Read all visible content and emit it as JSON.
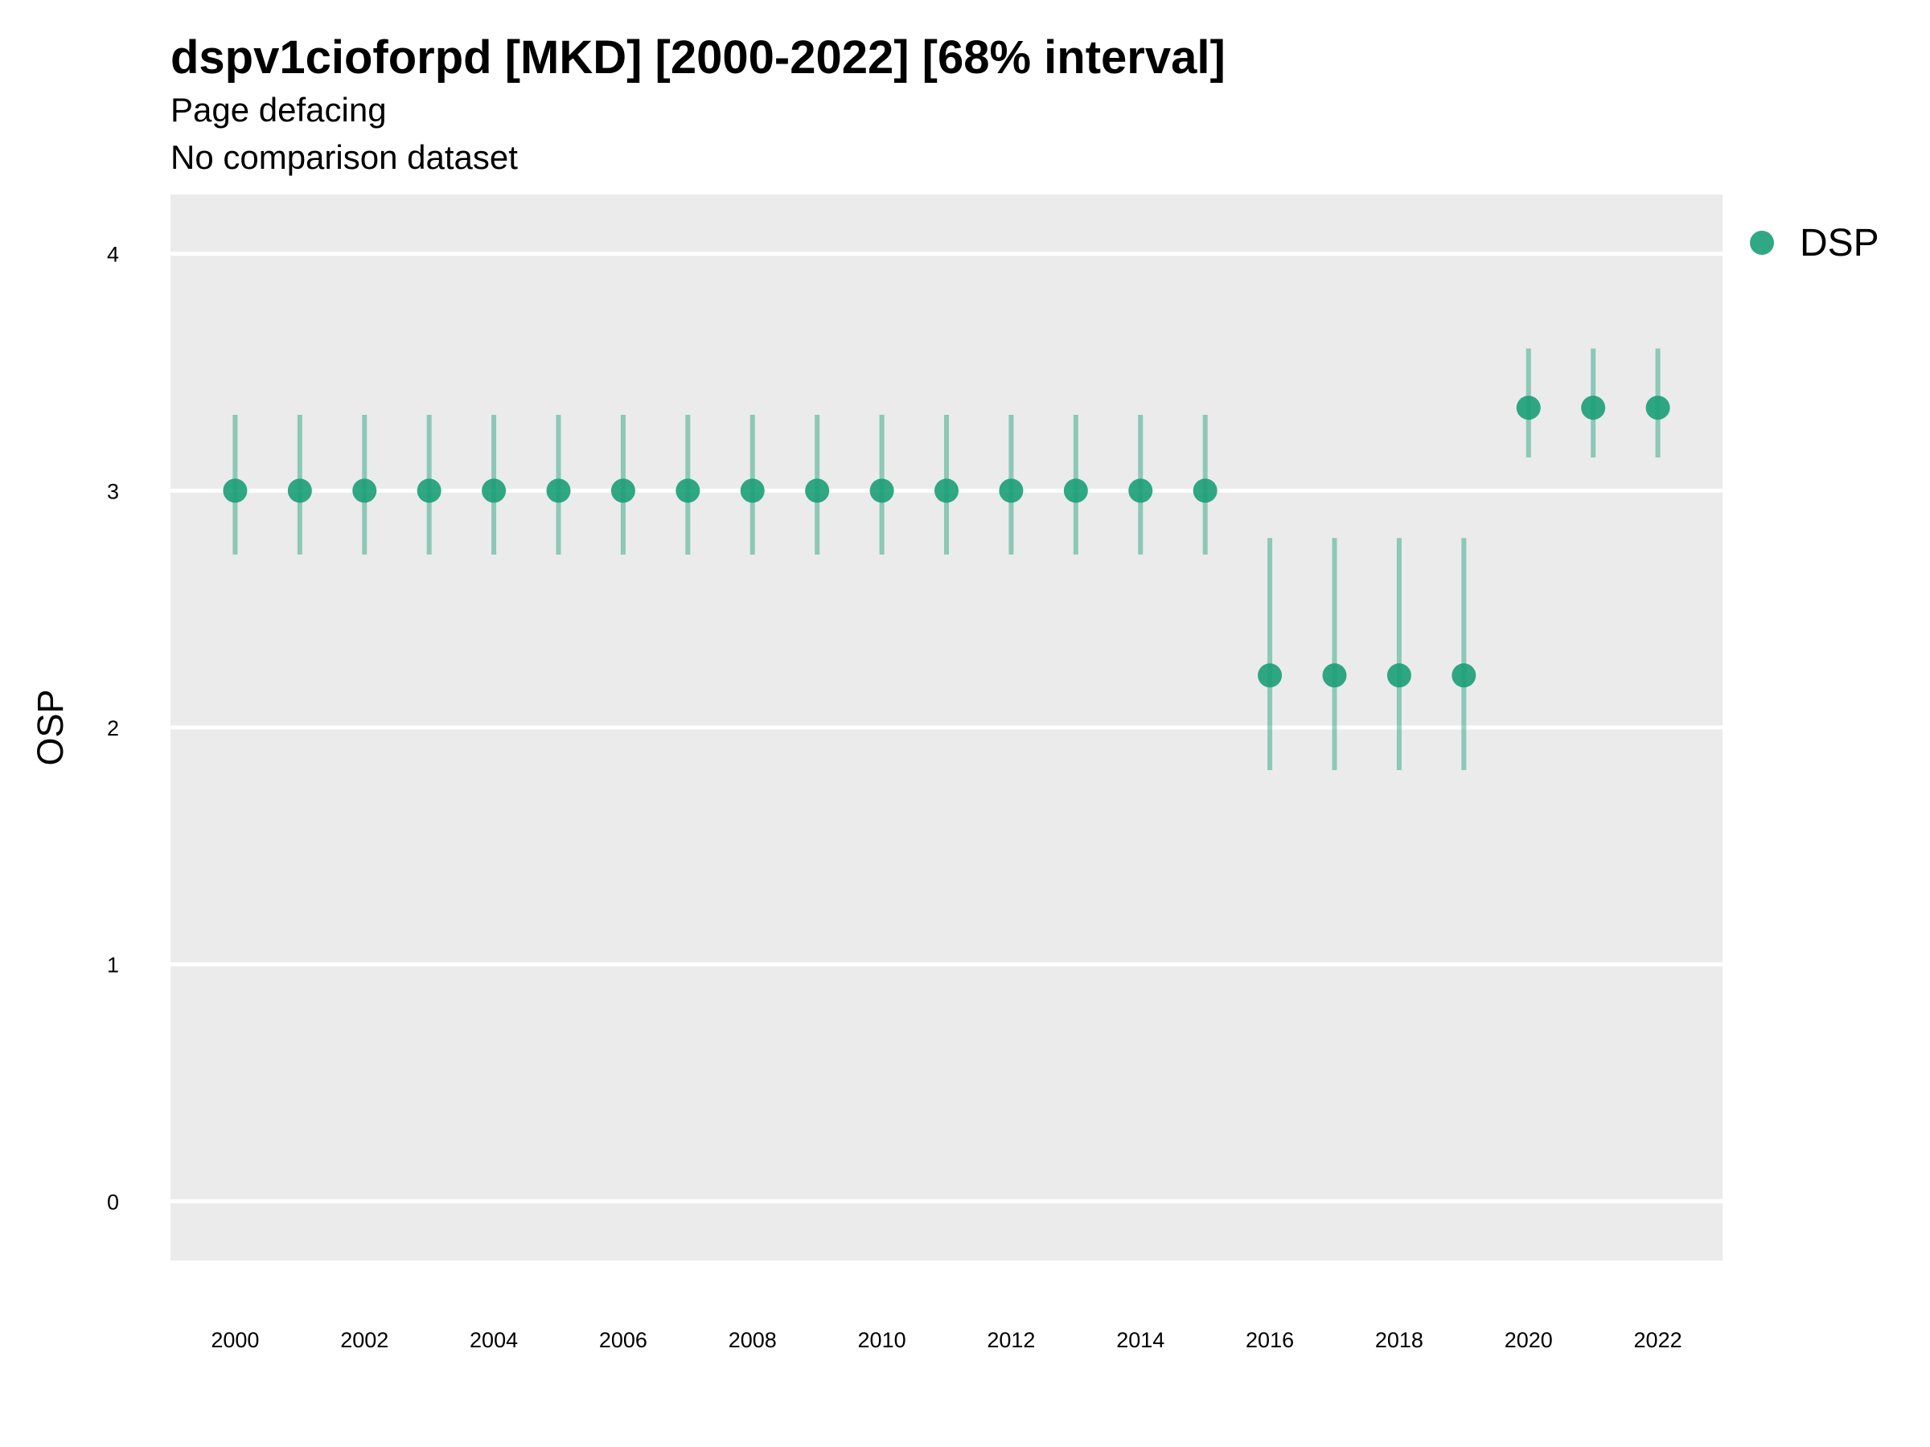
{
  "chart_data": {
    "type": "scatter",
    "title": "dspv1cioforpd [MKD] [2000-2022] [68% interval]",
    "subtitle_lines": [
      "Page defacing",
      "No comparison dataset"
    ],
    "xlabel": "",
    "ylabel": "OSP",
    "x_ticks": [
      "2000",
      "2002",
      "2004",
      "2006",
      "2008",
      "2010",
      "2012",
      "2014",
      "2016",
      "2018",
      "2020",
      "2022"
    ],
    "y_ticks": [
      "0",
      "1",
      "2",
      "3",
      "4"
    ],
    "xlim": [
      1999,
      2023
    ],
    "ylim": [
      -0.25,
      4.25
    ],
    "grid": true,
    "legend_position": "right",
    "series": [
      {
        "name": "DSP",
        "color": "#1b9e77",
        "x": [
          2000,
          2001,
          2002,
          2003,
          2004,
          2005,
          2006,
          2007,
          2008,
          2009,
          2010,
          2011,
          2012,
          2013,
          2014,
          2015,
          2016,
          2017,
          2018,
          2019,
          2020,
          2021,
          2022
        ],
        "y": [
          3.0,
          3.0,
          3.0,
          3.0,
          3.0,
          3.0,
          3.0,
          3.0,
          3.0,
          3.0,
          3.0,
          3.0,
          3.0,
          3.0,
          3.0,
          3.0,
          2.22,
          2.22,
          2.22,
          2.22,
          3.35,
          3.35,
          3.35
        ],
        "lower": [
          2.73,
          2.73,
          2.73,
          2.73,
          2.73,
          2.73,
          2.73,
          2.73,
          2.73,
          2.73,
          2.73,
          2.73,
          2.73,
          2.73,
          2.73,
          2.73,
          1.82,
          1.82,
          1.82,
          1.82,
          3.14,
          3.14,
          3.14
        ],
        "upper": [
          3.32,
          3.32,
          3.32,
          3.32,
          3.32,
          3.32,
          3.32,
          3.32,
          3.32,
          3.32,
          3.32,
          3.32,
          3.32,
          3.32,
          3.32,
          3.32,
          2.8,
          2.8,
          2.8,
          2.8,
          3.6,
          3.6,
          3.6
        ]
      }
    ],
    "colors": {
      "panel_background": "#ebebeb",
      "grid": "#ffffff",
      "point": "#1b9e77"
    }
  }
}
